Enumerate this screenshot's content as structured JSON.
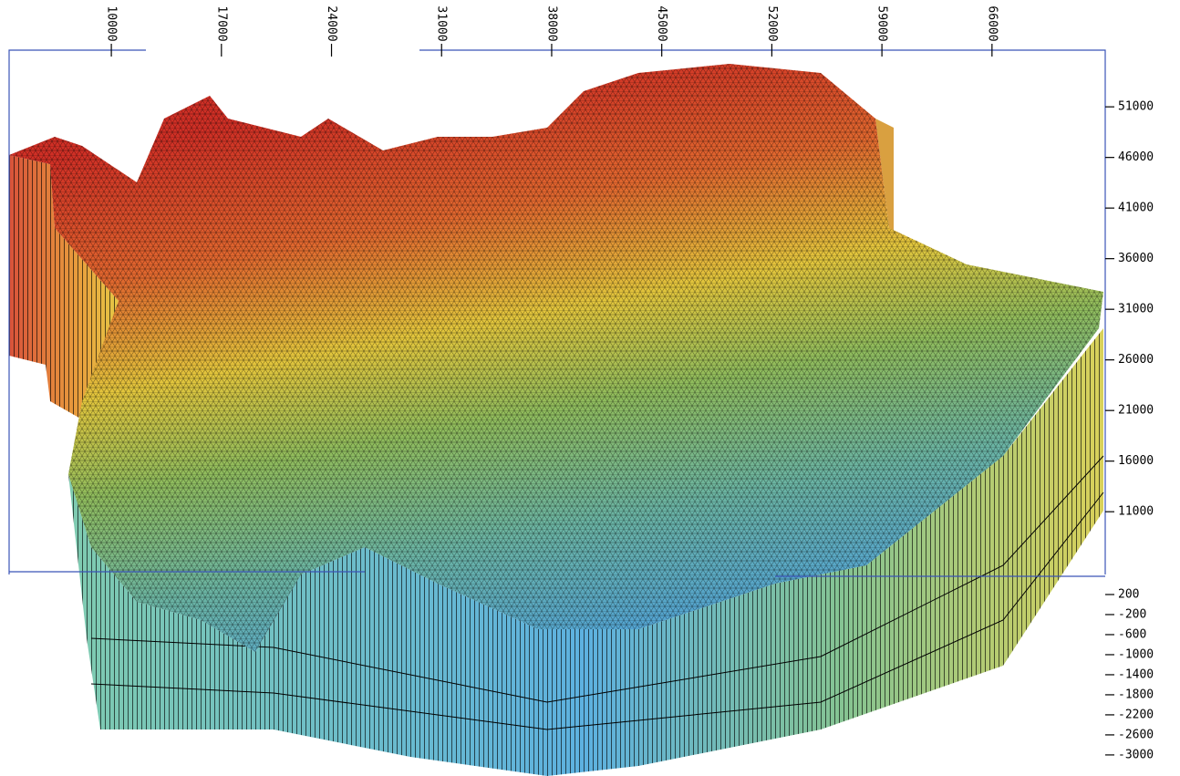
{
  "chart_data": {
    "type": "surface3d",
    "xlim": [
      3500,
      73200
    ],
    "xticks": [
      10000,
      17000,
      24000,
      31000,
      38000,
      45000,
      52000,
      59000,
      66000
    ],
    "ylim": [
      4800,
      56600
    ],
    "yticks": [
      51000,
      46000,
      41000,
      36000,
      31000,
      26000,
      21000,
      16000,
      11000
    ],
    "zlim": [
      -3420,
      600
    ],
    "zticks": [
      200,
      -200,
      -600,
      -1000,
      -1400,
      -1800,
      -2200,
      -2600,
      -3000
    ]
  }
}
